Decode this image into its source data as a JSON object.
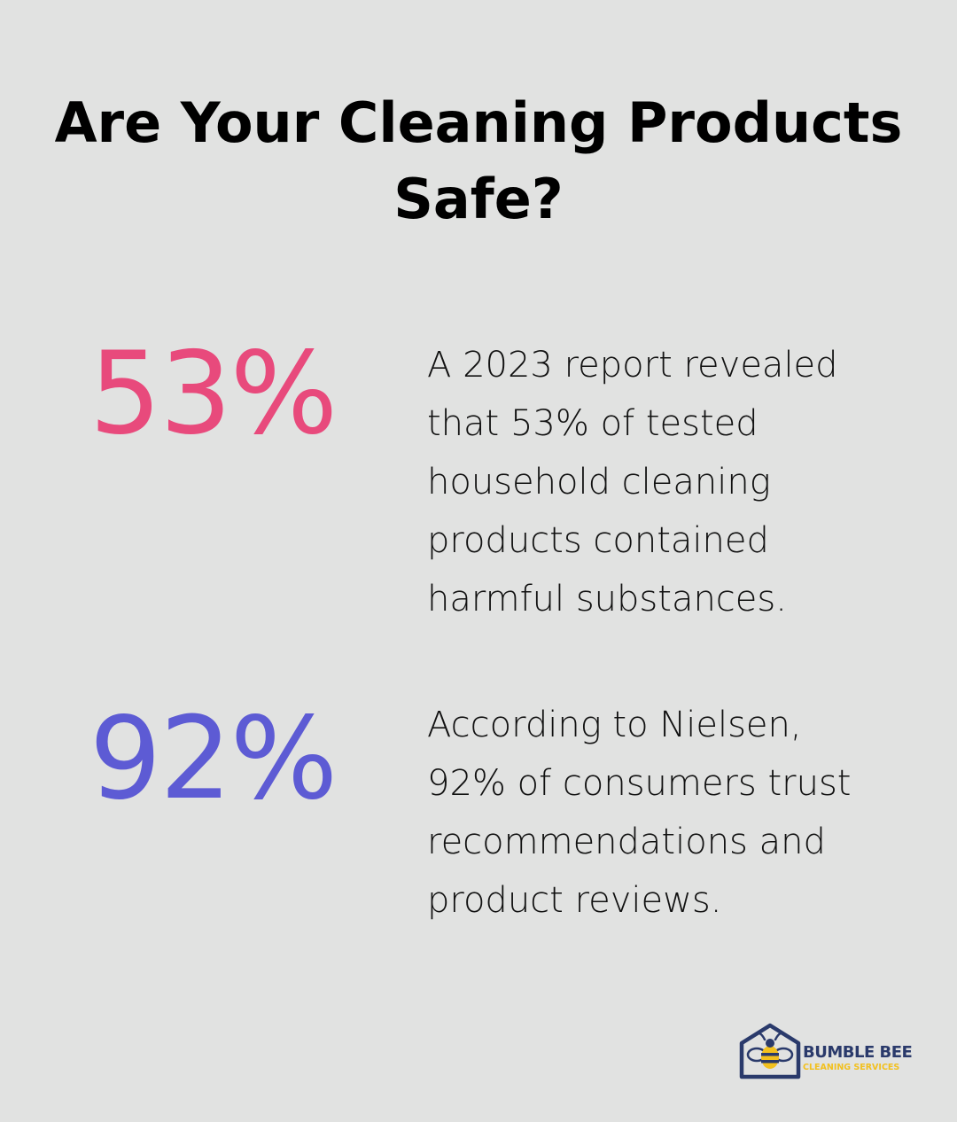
{
  "title": {
    "line1": "Are Your Cleaning Products",
    "line2": "Safe?"
  },
  "stats": [
    {
      "value": "53%",
      "color": "#e84a7c",
      "lines": [
        "A 2023 report revealed",
        "that 53% of tested",
        "household cleaning",
        "products contained",
        "harmful substances."
      ]
    },
    {
      "value": "92%",
      "color": "#5d5bd4",
      "lines": [
        "According to Nielsen,",
        "92% of consumers trust",
        "recommendations and",
        "product reviews."
      ]
    }
  ],
  "logo": {
    "name": "BUMBLE BEE",
    "tagline": "CLEANING SERVICES",
    "icon": "bee-house-icon",
    "primary_color": "#2a3a6b",
    "accent_color": "#f2c01e"
  }
}
